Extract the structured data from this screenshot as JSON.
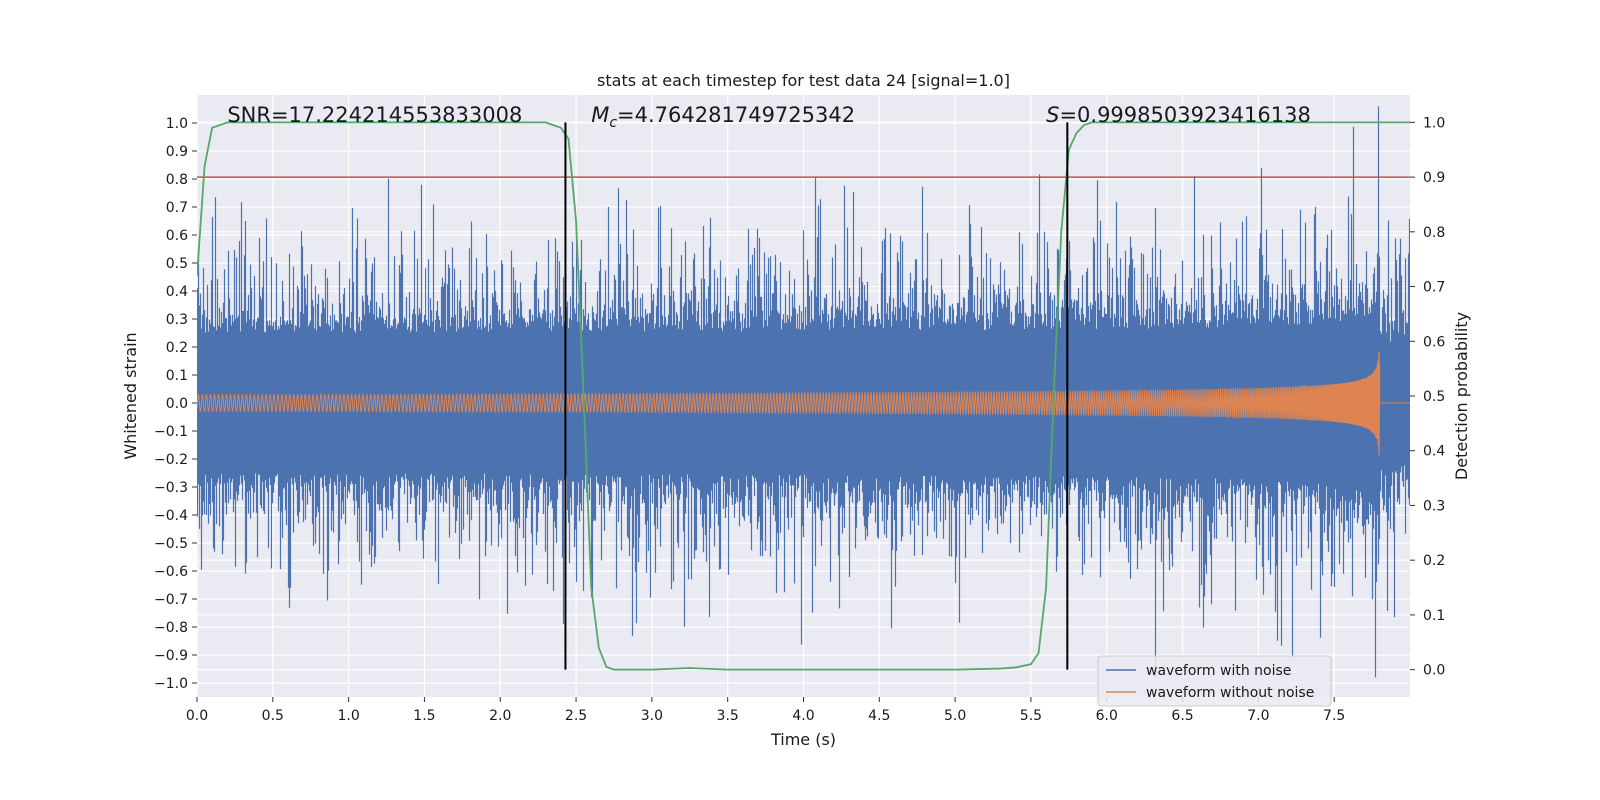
{
  "chart_data": {
    "type": "line",
    "title": "stats at each timestep for test data 24 [signal=1.0]",
    "xlabel": "Time (s)",
    "ylabel_left": "Whitened strain",
    "ylabel_right": "Detection probability",
    "xlim": [
      0.0,
      8.0
    ],
    "ylim_left": [
      -1.05,
      1.1
    ],
    "ylim_right": [
      -0.05,
      1.05
    ],
    "x_ticks": [
      "0.0",
      "0.5",
      "1.0",
      "1.5",
      "2.0",
      "2.5",
      "3.0",
      "3.5",
      "4.0",
      "4.5",
      "5.0",
      "5.5",
      "6.0",
      "6.5",
      "7.0",
      "7.5"
    ],
    "y_ticks_left": [
      "-1.0",
      "-0.9",
      "-0.8",
      "-0.7",
      "-0.6",
      "-0.5",
      "-0.4",
      "-0.3",
      "-0.2",
      "-0.1",
      "0.0",
      "0.1",
      "0.2",
      "0.3",
      "0.4",
      "0.5",
      "0.6",
      "0.7",
      "0.8",
      "0.9",
      "1.0"
    ],
    "y_ticks_right": [
      "0.0",
      "0.1",
      "0.2",
      "0.3",
      "0.4",
      "0.5",
      "0.6",
      "0.7",
      "0.8",
      "0.9",
      "1.0"
    ],
    "grid": true,
    "background": "#eaeaf2",
    "legend_placement": "lower-right",
    "series": [
      {
        "name": "waveform with noise",
        "axis": "left",
        "color": "#4c72b0",
        "kind": "noisy strain, envelope approx ±0.45 with spikes to ±1.0, merger at 7.8 s",
        "end": 8.0
      },
      {
        "name": "waveform without noise",
        "axis": "left",
        "color": "#dd8452",
        "kind": "chirp",
        "start_amplitude": 0.03,
        "peak_amplitude": 0.37,
        "merger_time": 7.8,
        "end": 8.0
      }
    ],
    "detection_probability": {
      "axis": "right",
      "color": "#55a868",
      "x": [
        0.0,
        0.05,
        0.1,
        0.2,
        0.5,
        1.0,
        1.5,
        2.0,
        2.2,
        2.3,
        2.35,
        2.4,
        2.45,
        2.5,
        2.55,
        2.6,
        2.65,
        2.7,
        2.75,
        2.8,
        3.0,
        3.25,
        3.5,
        4.0,
        4.5,
        5.0,
        5.3,
        5.4,
        5.5,
        5.55,
        5.6,
        5.65,
        5.7,
        5.75,
        5.8,
        5.85,
        5.9,
        6.0,
        6.5,
        7.0,
        7.5,
        8.0
      ],
      "y": [
        0.72,
        0.92,
        0.99,
        1.0,
        1.0,
        1.0,
        1.0,
        1.0,
        1.0,
        1.0,
        0.995,
        0.99,
        0.97,
        0.82,
        0.5,
        0.15,
        0.04,
        0.005,
        0.0,
        0.0,
        0.0,
        0.003,
        0.0,
        0.0,
        0.0,
        0.0,
        0.002,
        0.004,
        0.01,
        0.03,
        0.15,
        0.5,
        0.8,
        0.95,
        0.98,
        0.995,
        1.0,
        1.0,
        1.0,
        1.0,
        1.0,
        1.0
      ]
    },
    "threshold_line": {
      "axis": "right",
      "y": 0.9,
      "color": "#c44e52"
    },
    "vertical_lines": [
      {
        "x": 2.43,
        "color": "#000000"
      },
      {
        "x": 5.74,
        "color": "#000000"
      }
    ],
    "annotations": [
      {
        "id": "snr",
        "text": "SNR=17.224214553833008",
        "x": 0.2
      },
      {
        "id": "mc",
        "symbol": "M",
        "sub": "c",
        "text": "=4.764281749725342",
        "x": 2.6
      },
      {
        "id": "s",
        "symbol": "S",
        "text": "=0.9998503923416138",
        "x": 5.6
      }
    ],
    "legend": [
      {
        "label": "waveform with noise",
        "color": "#4c72b0"
      },
      {
        "label": "waveform without noise",
        "color": "#dd8452"
      }
    ]
  }
}
